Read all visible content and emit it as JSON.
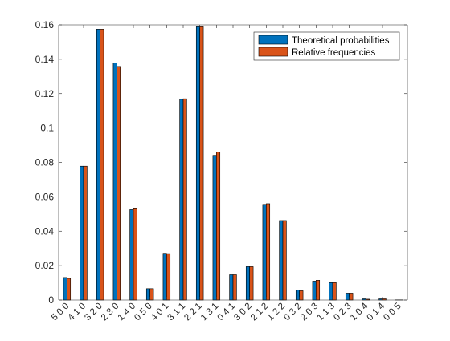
{
  "chart_data": {
    "type": "bar",
    "categories": [
      "5 0 0",
      "4 1 0",
      "3 2 0",
      "2 3 0",
      "1 4 0",
      "0 5 0",
      "4 0 1",
      "3 1 1",
      "2 2 1",
      "1 3 1",
      "0 4 1",
      "3 0 2",
      "2 1 2",
      "1 2 2",
      "0 3 2",
      "2 0 3",
      "1 1 3",
      "0 2 3",
      "1 0 4",
      "0 1 4",
      "0 0 5"
    ],
    "series": [
      {
        "name": "Theoretical probabilities",
        "color": "#0072BD",
        "values": [
          0.0131,
          0.0778,
          0.1575,
          0.1378,
          0.0525,
          0.0066,
          0.0272,
          0.1167,
          0.1589,
          0.0841,
          0.0147,
          0.0194,
          0.0556,
          0.0462,
          0.0059,
          0.011,
          0.0101,
          0.004,
          0.0007,
          0.0007,
          0.0001
        ]
      },
      {
        "name": "Relative frequencies",
        "color": "#D95319",
        "values": [
          0.0126,
          0.0778,
          0.1575,
          0.1358,
          0.0535,
          0.0066,
          0.027,
          0.117,
          0.1589,
          0.0861,
          0.0147,
          0.0194,
          0.056,
          0.0462,
          0.0054,
          0.0115,
          0.0101,
          0.004,
          0.0005,
          0.0007,
          0.0001
        ]
      }
    ],
    "yticks": [
      "0",
      "0.02",
      "0.04",
      "0.06",
      "0.08",
      "0.1",
      "0.12",
      "0.14",
      "0.16"
    ],
    "ylim": [
      0,
      0.16
    ],
    "legend_position": "top-right",
    "grid": false,
    "title": "",
    "xlabel": "",
    "ylabel": ""
  }
}
